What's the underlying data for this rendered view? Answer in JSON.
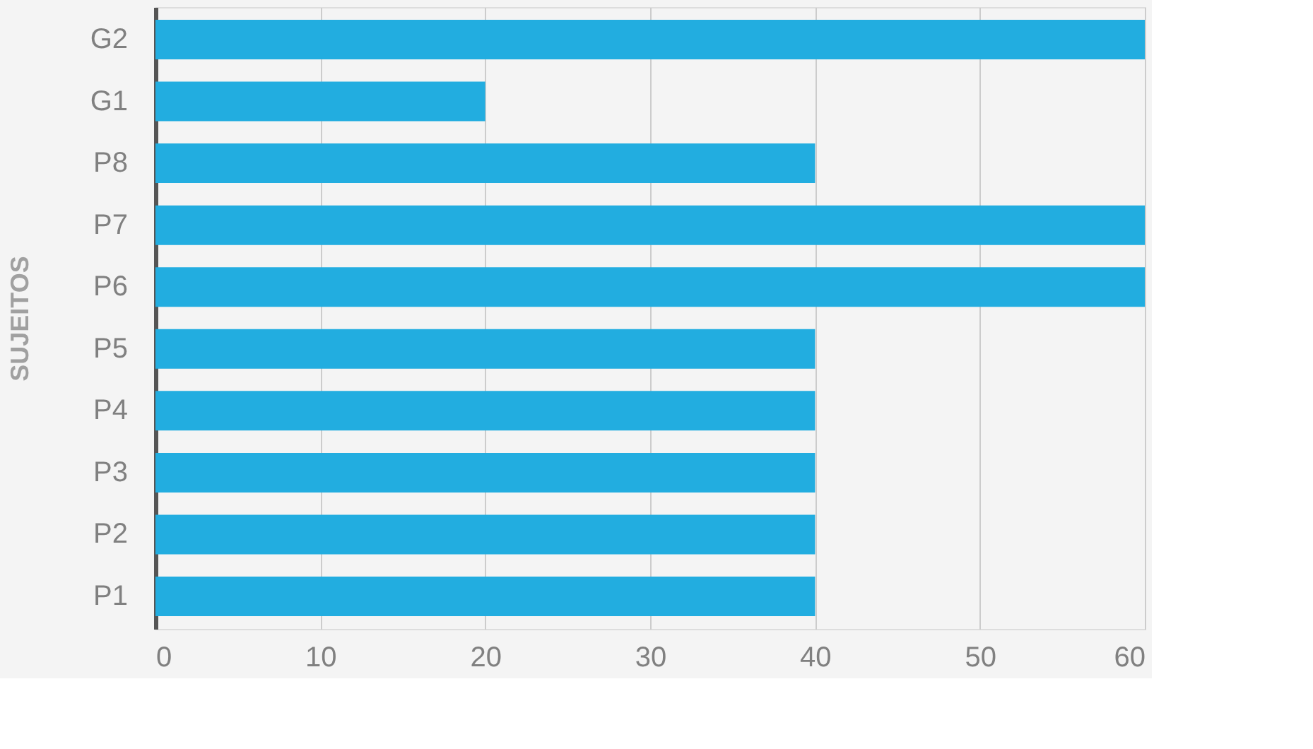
{
  "chart_data": {
    "type": "bar",
    "orientation": "horizontal",
    "ylabel": "SUJEITOS",
    "categories": [
      "G2",
      "G1",
      "P8",
      "P7",
      "P6",
      "P5",
      "P4",
      "P3",
      "P2",
      "P1"
    ],
    "values": [
      60,
      20,
      40,
      60,
      60,
      40,
      40,
      40,
      40,
      40
    ],
    "color": "#22ade0",
    "xlim": [
      0,
      60
    ],
    "xticks": [
      0,
      10,
      20,
      30,
      40,
      50,
      60
    ],
    "grid": "x"
  }
}
